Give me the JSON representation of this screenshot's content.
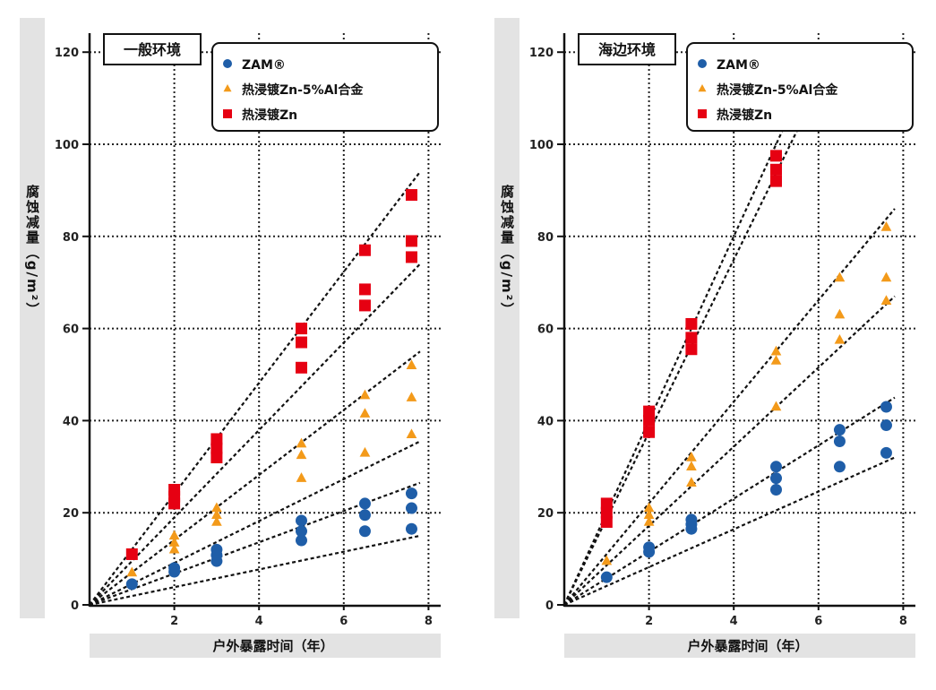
{
  "colors": {
    "zam": "#1f5ea8",
    "znal": "#f39a1a",
    "zn": "#e60012",
    "bar": "#e3e3e3"
  },
  "chart_data": [
    {
      "type": "scatter",
      "title": "一般环境",
      "xlabel": "户外暴露时间（年）",
      "ylabel": "腐蚀减量（g/m²）",
      "xlim": [
        0,
        8.3
      ],
      "ylim": [
        0,
        123
      ],
      "xticks": [
        "2",
        "4",
        "6",
        "8"
      ],
      "yticks": [
        "0",
        "20",
        "40",
        "60",
        "80",
        "100",
        "120"
      ],
      "grid": true,
      "legend_position": "top-right",
      "series": [
        {
          "name": "ZAM®",
          "marker": "circle",
          "key": "zam",
          "points": [
            [
              1,
              4.5
            ],
            [
              2,
              7.2
            ],
            [
              2,
              8
            ],
            [
              3,
              9.5
            ],
            [
              3,
              10.8
            ],
            [
              3,
              12
            ],
            [
              5,
              14
            ],
            [
              5,
              16
            ],
            [
              5,
              18.3
            ],
            [
              6.5,
              16
            ],
            [
              6.5,
              19.5
            ],
            [
              6.5,
              22
            ],
            [
              7.6,
              16.5
            ],
            [
              7.6,
              21
            ],
            [
              7.6,
              24.2
            ]
          ],
          "trend_ends": [
            [
              7.8,
              26.5
            ],
            [
              7.8,
              15
            ]
          ]
        },
        {
          "name": "热浸镀Zn-5%Al合金",
          "marker": "triangle",
          "key": "znal",
          "points": [
            [
              1,
              7
            ],
            [
              2,
              12
            ],
            [
              2,
              13.5
            ],
            [
              2,
              15
            ],
            [
              3,
              18
            ],
            [
              3,
              19.5
            ],
            [
              3,
              21
            ],
            [
              5,
              27.5
            ],
            [
              5,
              32.5
            ],
            [
              5,
              35
            ],
            [
              6.5,
              33
            ],
            [
              6.5,
              41.5
            ],
            [
              6.5,
              45.5
            ],
            [
              7.6,
              37
            ],
            [
              7.6,
              45
            ],
            [
              7.6,
              52
            ]
          ],
          "trend_ends": [
            [
              7.8,
              55
            ],
            [
              7.8,
              35.5
            ]
          ]
        },
        {
          "name": "热浸镀Zn",
          "marker": "square",
          "key": "zn",
          "points": [
            [
              1,
              11
            ],
            [
              2,
              22
            ],
            [
              2,
              23.5
            ],
            [
              2,
              25
            ],
            [
              3,
              32
            ],
            [
              3,
              34
            ],
            [
              3,
              36
            ],
            [
              5,
              51.5
            ],
            [
              5,
              57
            ],
            [
              5,
              60
            ],
            [
              6.5,
              65
            ],
            [
              6.5,
              68.5
            ],
            [
              6.5,
              77
            ],
            [
              7.6,
              75.5
            ],
            [
              7.6,
              79
            ],
            [
              7.6,
              89
            ]
          ],
          "trend_ends": [
            [
              7.8,
              94
            ],
            [
              7.8,
              74
            ]
          ]
        }
      ]
    },
    {
      "type": "scatter",
      "title": "海边环境",
      "xlabel": "户外暴露时间（年）",
      "ylabel": "腐蚀减量（g/m²）",
      "xlim": [
        0,
        8.3
      ],
      "ylim": [
        0,
        123
      ],
      "xticks": [
        "2",
        "4",
        "6",
        "8"
      ],
      "yticks": [
        "0",
        "20",
        "40",
        "60",
        "80",
        "100",
        "120"
      ],
      "grid": true,
      "legend_position": "top-right",
      "series": [
        {
          "name": "ZAM®",
          "marker": "circle",
          "key": "zam",
          "points": [
            [
              1,
              6
            ],
            [
              2,
              11.5
            ],
            [
              2,
              12.5
            ],
            [
              3,
              16.5
            ],
            [
              3,
              17.5
            ],
            [
              3,
              18.5
            ],
            [
              5,
              25
            ],
            [
              5,
              27.5
            ],
            [
              5,
              30
            ],
            [
              6.5,
              30
            ],
            [
              6.5,
              35.5
            ],
            [
              6.5,
              38
            ],
            [
              7.6,
              33
            ],
            [
              7.6,
              39
            ],
            [
              7.6,
              43
            ]
          ],
          "trend_ends": [
            [
              7.8,
              45
            ],
            [
              7.8,
              32
            ]
          ]
        },
        {
          "name": "热浸镀Zn-5%Al合金",
          "marker": "triangle",
          "key": "znal",
          "points": [
            [
              1,
              9.5
            ],
            [
              2,
              18
            ],
            [
              2,
              19.5
            ],
            [
              2,
              21
            ],
            [
              3,
              26.5
            ],
            [
              3,
              30
            ],
            [
              3,
              32
            ],
            [
              5,
              43
            ],
            [
              5,
              53
            ],
            [
              5,
              55
            ],
            [
              6.5,
              57.5
            ],
            [
              6.5,
              63
            ],
            [
              6.5,
              71
            ],
            [
              7.6,
              66
            ],
            [
              7.6,
              71
            ],
            [
              7.6,
              82
            ]
          ],
          "trend_ends": [
            [
              7.8,
              86
            ],
            [
              7.8,
              67
            ]
          ]
        },
        {
          "name": "热浸镀Zn",
          "marker": "square",
          "key": "zn",
          "points": [
            [
              1,
              18
            ],
            [
              1,
              20
            ],
            [
              1,
              22
            ],
            [
              2,
              37.5
            ],
            [
              2,
              40
            ],
            [
              2,
              42
            ],
            [
              3,
              55.5
            ],
            [
              3,
              58
            ],
            [
              3,
              61
            ],
            [
              5,
              92
            ],
            [
              5,
              94.5
            ],
            [
              5,
              97.5
            ]
          ],
          "trend_ends": [
            [
              5.2,
              104
            ],
            [
              5.55,
              104
            ]
          ]
        }
      ]
    }
  ]
}
